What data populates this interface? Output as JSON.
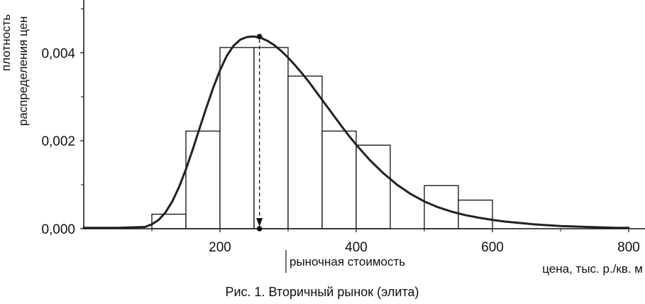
{
  "chart_data": {
    "type": "bar",
    "title": "",
    "caption": "Рис. 1. Вторичный рынок (элита)",
    "xlabel": "цена, тыс. р./кв. м",
    "ylabel_line1": "плотность",
    "ylabel_line2": "распределения цен",
    "xlim": [
      0,
      800
    ],
    "ylim": [
      0,
      0.0052
    ],
    "x_ticks": [
      200,
      400,
      600,
      800
    ],
    "x_tick_labels": [
      "200",
      "400",
      "600",
      "800"
    ],
    "y_ticks": [
      0,
      0.002,
      0.004
    ],
    "y_tick_labels": [
      "0,000",
      "0,002",
      "0,004"
    ],
    "grid": false,
    "bin_width": 50,
    "histogram": {
      "bin_starts": [
        100,
        150,
        200,
        250,
        300,
        350,
        400,
        450,
        500,
        550,
        600
      ],
      "values": [
        0.00033,
        0.00222,
        0.00412,
        0.00412,
        0.00347,
        0.00222,
        0.0019,
        0,
        0.00098,
        0.00065,
        0
      ]
    },
    "density_curve": {
      "x": [
        0,
        50,
        90,
        100,
        110,
        120,
        130,
        140,
        150,
        160,
        170,
        180,
        190,
        200,
        210,
        220,
        230,
        240,
        250,
        260,
        270,
        280,
        290,
        300,
        310,
        320,
        330,
        340,
        350,
        360,
        370,
        380,
        390,
        400,
        420,
        440,
        460,
        480,
        500,
        520,
        540,
        560,
        580,
        600,
        620,
        640,
        660,
        680,
        700,
        720,
        740,
        760,
        780,
        800
      ],
      "y": [
        2e-05,
        2e-05,
        4e-05,
        0.0001,
        0.0002,
        0.00037,
        0.00062,
        0.00095,
        0.00135,
        0.0018,
        0.00228,
        0.00275,
        0.0032,
        0.0036,
        0.00393,
        0.00416,
        0.0043,
        0.00436,
        0.00437,
        0.00434,
        0.00427,
        0.00417,
        0.00404,
        0.00389,
        0.00372,
        0.00354,
        0.00335,
        0.00314,
        0.00293,
        0.00272,
        0.00251,
        0.0023,
        0.0021,
        0.00191,
        0.00156,
        0.00126,
        0.001,
        0.00079,
        0.00062,
        0.00049,
        0.00039,
        0.00031,
        0.00025,
        0.0002,
        0.00016,
        0.00013,
        0.0001,
        8e-05,
        6e-05,
        5e-05,
        4e-05,
        3e-05,
        2e-05,
        2e-05
      ]
    },
    "marker": {
      "x": 258,
      "peak_y": 0.00437,
      "label": "рыночная стоимость"
    }
  }
}
